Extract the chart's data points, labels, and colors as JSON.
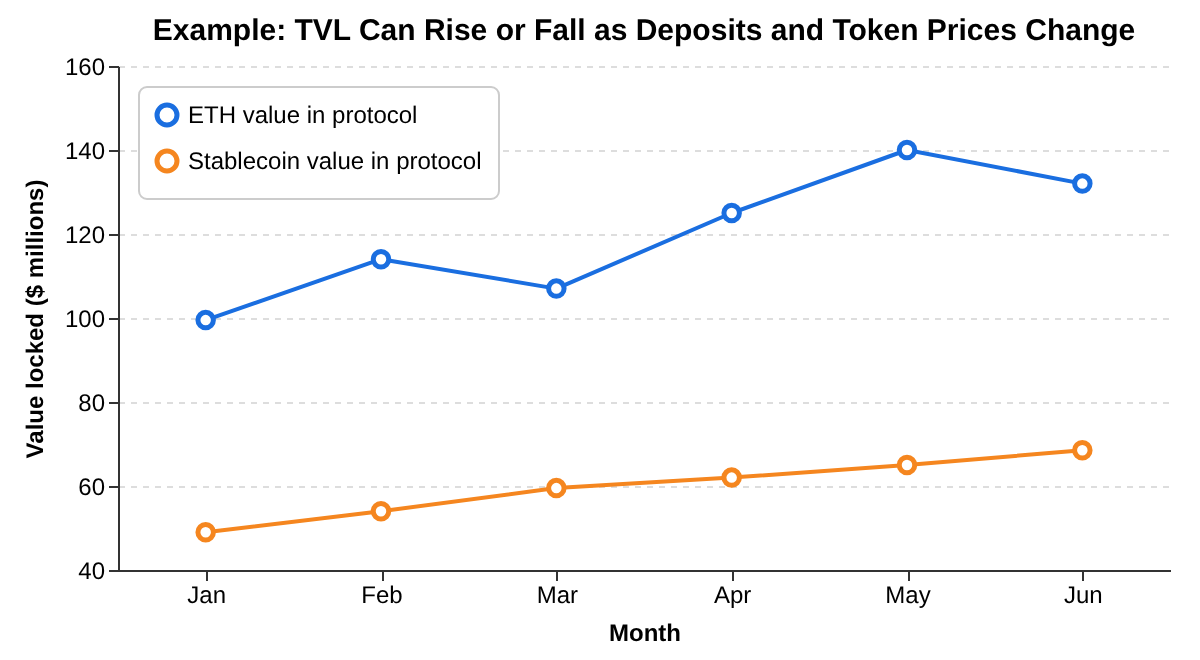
{
  "chart_data": {
    "type": "line",
    "title": "Example: TVL Can Rise or Fall as Deposits and Token Prices Change",
    "xlabel": "Month",
    "ylabel": "Value locked ($ millions)",
    "categories": [
      "Jan",
      "Feb",
      "Mar",
      "Apr",
      "May",
      "Jun"
    ],
    "series": [
      {
        "name": "ETH value in protocol",
        "color": "#1a6ee0",
        "values": [
          99.5,
          114,
          107,
          125,
          140,
          132
        ]
      },
      {
        "name": "Stablecoin value in protocol",
        "color": "#f5861f",
        "values": [
          49,
          54,
          59.5,
          62,
          65,
          68.5
        ]
      }
    ],
    "ylim": [
      40,
      160
    ],
    "yticks": [
      40,
      60,
      80,
      100,
      120,
      140,
      160
    ],
    "grid": "y",
    "legend": "top left",
    "marker": "circle",
    "line_style": "solid"
  }
}
